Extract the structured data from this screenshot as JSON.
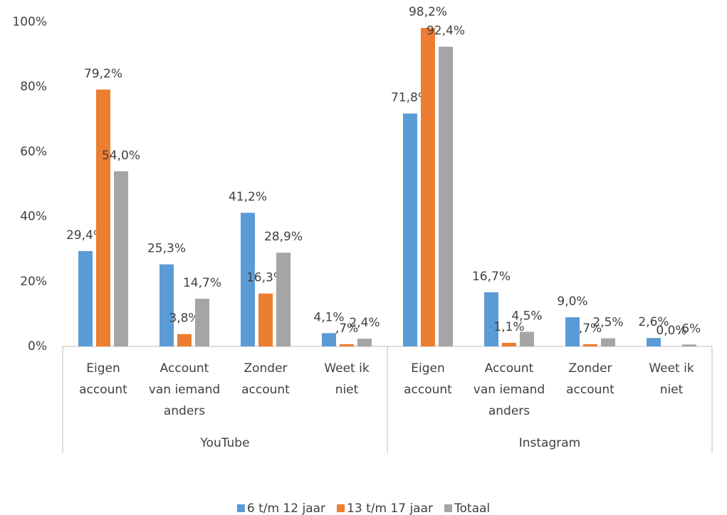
{
  "chart_data": {
    "type": "bar",
    "categories": [
      [
        "Eigen",
        "account"
      ],
      [
        "Account",
        "van iemand",
        "anders"
      ],
      [
        "Zonder",
        "account"
      ],
      [
        "Weet ik",
        "niet"
      ],
      [
        "Eigen",
        "account"
      ],
      [
        "Account",
        "van iemand",
        "anders"
      ],
      [
        "Zonder",
        "account"
      ],
      [
        "Weet ik",
        "niet"
      ]
    ],
    "groups": [
      "YouTube",
      "Instagram"
    ],
    "series": [
      {
        "name": "6 t/m 12 jaar",
        "color": "#5b9bd5",
        "values": [
          29.4,
          25.3,
          41.2,
          4.1,
          71.8,
          16.7,
          9.0,
          2.6
        ],
        "value_labels": [
          "29,4%",
          "25,3%",
          "41,2%",
          "4,1%",
          "71,8%",
          "16,7%",
          "9,0%",
          "2,6%"
        ]
      },
      {
        "name": "13 t/m 17 jaar",
        "color": "#ed7d31",
        "values": [
          79.2,
          3.8,
          16.3,
          0.7,
          98.2,
          1.1,
          0.7,
          0.0
        ],
        "value_labels": [
          "79,2%",
          "3,8%",
          "16,3%",
          ",7%",
          "98,2%",
          "1,1%",
          ",7%",
          "0,0%"
        ]
      },
      {
        "name": "Totaal",
        "color": "#a5a5a5",
        "values": [
          54.0,
          14.7,
          28.9,
          2.4,
          92.4,
          4.5,
          2.5,
          0.6
        ],
        "value_labels": [
          "54,0%",
          "14,7%",
          "28,9%",
          "2,4%",
          "92,4%",
          "4,5%",
          "2,5%",
          ",6%"
        ]
      }
    ],
    "ylim": [
      0,
      100
    ],
    "yticks": [
      {
        "value": 0,
        "label": "0%"
      },
      {
        "value": 20,
        "label": "20%"
      },
      {
        "value": 40,
        "label": "40%"
      },
      {
        "value": 60,
        "label": "60%"
      },
      {
        "value": 80,
        "label": "80%"
      },
      {
        "value": 100,
        "label": "100%"
      }
    ],
    "grid": false,
    "legend": "bottom"
  }
}
